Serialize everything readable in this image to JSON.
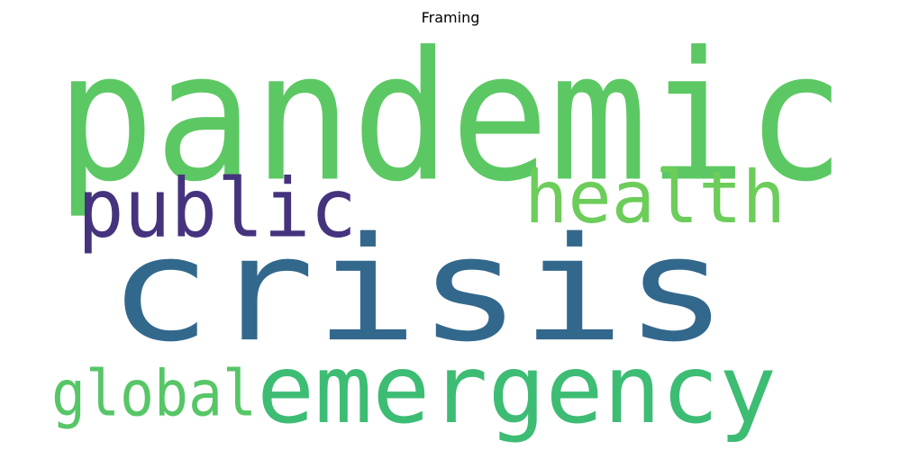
{
  "title": "Framing",
  "words": [
    {
      "text": "pandemic",
      "color": "#5cc863"
    },
    {
      "text": "crisis",
      "color": "#33688d"
    },
    {
      "text": "public",
      "color": "#46337e"
    },
    {
      "text": "health",
      "color": "#6ccd5a"
    },
    {
      "text": "emergency",
      "color": "#3dbc74"
    },
    {
      "text": "global",
      "color": "#56c667"
    }
  ]
}
